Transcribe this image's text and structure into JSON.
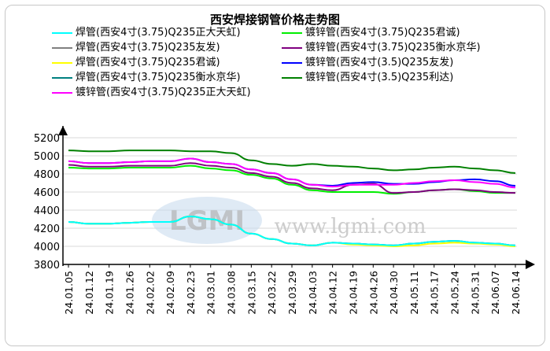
{
  "chart_data": {
    "type": "line",
    "title": "西安焊接钢管价格走势图",
    "xlabel": "",
    "ylabel": "",
    "ylim": [
      3800,
      5200
    ],
    "yticks": [
      3800,
      4000,
      4200,
      4400,
      4600,
      4800,
      5000,
      5200
    ],
    "categories": [
      "24.01.05",
      "24.01.12",
      "24.01.19",
      "24.01.26",
      "24.02.02",
      "24.02.09",
      "24.02.23",
      "24.03.01",
      "24.03.08",
      "24.03.15",
      "24.03.22",
      "24.03.29",
      "24.04.03",
      "24.04.12",
      "24.04.19",
      "24.04.26",
      "24.04.30",
      "24.05.11",
      "24.05.17",
      "24.05.24",
      "24.05.31",
      "24.06.07",
      "24.06.14"
    ],
    "grid": true,
    "legend_position": "top",
    "watermark": "LGMI www.lgmi.com",
    "series": [
      {
        "name": "焊管(西安4寸(3.75)Q235正大天虹)",
        "color": "#00ffff",
        "values": [
          4270,
          4250,
          4250,
          4260,
          4270,
          4270,
          4330,
          4300,
          4240,
          4140,
          4080,
          4030,
          4010,
          4040,
          4030,
          4020,
          4010,
          4030,
          4050,
          4060,
          4040,
          4030,
          4010
        ]
      },
      {
        "name": "焊管(西安4寸(3.75)Q235友发)",
        "color": "#808080",
        "values": [
          4270,
          4250,
          4250,
          4260,
          4270,
          4270,
          4330,
          4300,
          4240,
          4140,
          4080,
          4030,
          4010,
          4040,
          4030,
          4020,
          4010,
          4030,
          4050,
          4060,
          4040,
          4030,
          4010
        ]
      },
      {
        "name": "焊管(西安4寸(3.75)Q235君诚)",
        "color": "#ffff00",
        "values": [
          4270,
          4250,
          4250,
          4260,
          4270,
          4270,
          4330,
          4300,
          4240,
          4140,
          4080,
          4030,
          4010,
          4040,
          4020,
          4010,
          4000,
          4010,
          4030,
          4040,
          4030,
          4020,
          4000
        ]
      },
      {
        "name": "焊管(西安4寸(3.75)Q235衡水京华)",
        "color": "#008080",
        "values": [
          4270,
          4250,
          4250,
          4260,
          4270,
          4270,
          4330,
          4300,
          4240,
          4140,
          4080,
          4030,
          4010,
          4040,
          4030,
          4020,
          4010,
          4030,
          4050,
          4060,
          4040,
          4030,
          4010
        ]
      },
      {
        "name": "镀锌管(西安4寸(3.75)Q235正大天虹)",
        "color": "#ff00ff",
        "values": [
          4940,
          4920,
          4920,
          4930,
          4940,
          4940,
          4970,
          4930,
          4910,
          4850,
          4810,
          4740,
          4680,
          4660,
          4680,
          4680,
          4680,
          4700,
          4720,
          4730,
          4710,
          4690,
          4650
        ]
      },
      {
        "name": "镀锌管(西安4寸(3.75)Q235君诚)",
        "color": "#00ee00",
        "values": [
          4870,
          4860,
          4860,
          4870,
          4870,
          4870,
          4890,
          4860,
          4840,
          4790,
          4750,
          4680,
          4620,
          4600,
          4600,
          4600,
          4580,
          4600,
          4620,
          4630,
          4610,
          4590,
          4590
        ]
      },
      {
        "name": "镀锌管(西安4寸(3.75)Q235衡水京华)",
        "color": "#800080",
        "values": [
          4900,
          4880,
          4880,
          4890,
          4890,
          4890,
          4920,
          4890,
          4870,
          4810,
          4770,
          4700,
          4640,
          4620,
          4680,
          4690,
          4590,
          4600,
          4620,
          4630,
          4620,
          4600,
          4590
        ]
      },
      {
        "name": "镀锌管(西安4寸(3.5)Q235友发)",
        "color": "#0000ff",
        "values": [
          4940,
          4920,
          4920,
          4930,
          4940,
          4940,
          4970,
          4930,
          4910,
          4850,
          4810,
          4740,
          4680,
          4670,
          4700,
          4710,
          4690,
          4690,
          4710,
          4730,
          4740,
          4720,
          4670
        ]
      },
      {
        "name": "镀锌管(西安4寸(3.5)Q235利达)",
        "color": "#008000",
        "values": [
          5060,
          5050,
          5050,
          5060,
          5060,
          5060,
          5050,
          5050,
          5030,
          4950,
          4910,
          4890,
          4910,
          4890,
          4880,
          4860,
          4840,
          4850,
          4870,
          4880,
          4860,
          4840,
          4810
        ]
      }
    ]
  }
}
